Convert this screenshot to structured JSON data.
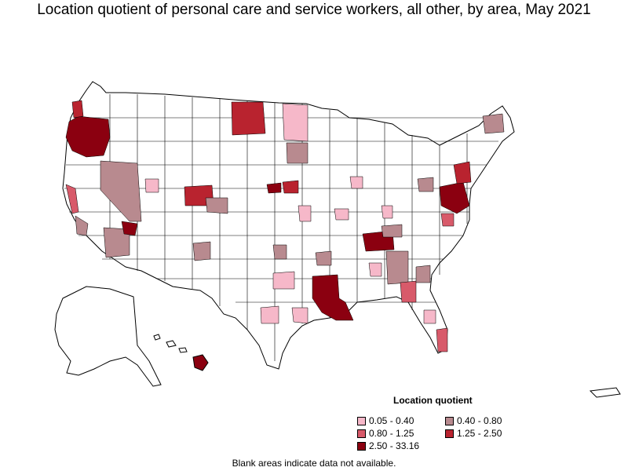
{
  "title": "Location quotient of personal care and service workers, all other, by area, May 2021",
  "legend": {
    "title": "Location quotient",
    "items": [
      {
        "label": "0.05 - 0.40",
        "color": "#f6b8c9"
      },
      {
        "label": "0.40 - 0.80",
        "color": "#b88a8f"
      },
      {
        "label": "0.80 - 1.25",
        "color": "#d85a6a"
      },
      {
        "label": "1.25 - 2.50",
        "color": "#b9232f"
      },
      {
        "label": "2.50 - 33.16",
        "color": "#8b0010"
      }
    ]
  },
  "footnote": "Blank areas indicate data not available."
}
